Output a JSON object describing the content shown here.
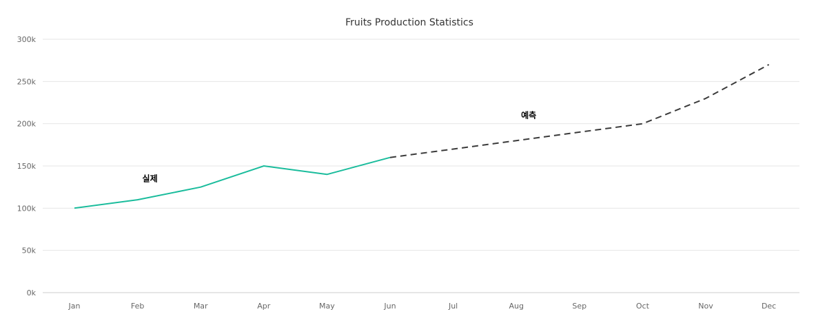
{
  "chart_data": {
    "type": "line",
    "title": "Fruits Production Statistics",
    "xlabel": "",
    "ylabel": "",
    "categories": [
      "Jan",
      "Feb",
      "Mar",
      "Apr",
      "May",
      "Jun",
      "Jul",
      "Aug",
      "Sep",
      "Oct",
      "Nov",
      "Dec"
    ],
    "ylim": [
      0,
      300000
    ],
    "yticks": [
      0,
      50000,
      100000,
      150000,
      200000,
      250000,
      300000
    ],
    "ytick_labels": [
      "0k",
      "50k",
      "100k",
      "150k",
      "200k",
      "250k",
      "300k"
    ],
    "grid": true,
    "legend": "none",
    "series": [
      {
        "values": [
          100000,
          110000,
          125000,
          150000,
          140000,
          160000,
          170000,
          180000,
          190000,
          200000,
          230000,
          270000
        ],
        "segments": [
          {
            "from": 0,
            "to": 5,
            "style": "solid",
            "color": "#1abc9c"
          },
          {
            "from": 5,
            "to": 11,
            "style": "dashed",
            "color": "#3a3a3a"
          }
        ]
      }
    ],
    "annotations": [
      {
        "text": "실제",
        "x": "Feb",
        "y": 135000
      },
      {
        "text": "예측",
        "x": "Aug",
        "y": 210000
      }
    ]
  },
  "colors": {
    "grid": "#e6e6e6",
    "axis": "#cccccc"
  }
}
